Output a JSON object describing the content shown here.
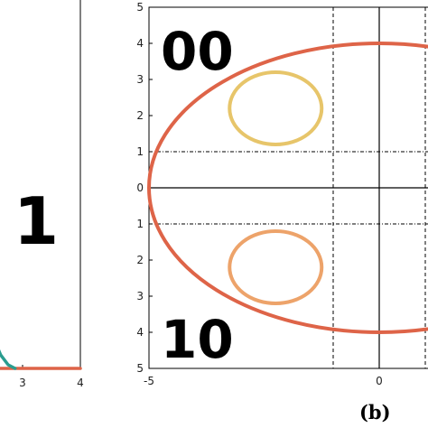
{
  "colors": {
    "ellipse": "#de6448",
    "top_circle": "#e7c56a",
    "bottom_circle": "#eda36a",
    "left_curve": "#2a9d8f",
    "axis": "#000000",
    "background": "#ffffff"
  },
  "chart_data": [
    {
      "type": "line",
      "panel": "left (partial)",
      "title": "",
      "xlabel": "",
      "ylabel": "",
      "x_ticks": [
        "3",
        "4"
      ],
      "xlim": [
        2.4,
        4
      ],
      "region_label": "1",
      "series": [
        {
          "color": "#de6448",
          "x": [
            2.4,
            4
          ],
          "y": [
            0,
            0
          ]
        },
        {
          "color": "#2a9d8f",
          "x": [
            2.45,
            2.52,
            2.62,
            2.75,
            2.87
          ],
          "y": [
            0.09,
            0.06,
            0.03,
            0.008,
            0.0
          ]
        }
      ]
    },
    {
      "type": "line",
      "panel_label": "(b)",
      "title": "",
      "xlabel": "",
      "ylabel": "",
      "xlim": [
        -5,
        1
      ],
      "ylim": [
        -5,
        5
      ],
      "x_ticks": [
        "-5",
        "0"
      ],
      "y_ticks": [
        "5",
        "4",
        "3",
        "2",
        "1",
        "0",
        "1",
        "2",
        "3",
        "4",
        "5"
      ],
      "region_labels": {
        "top": "00",
        "bottom": "10"
      },
      "axis_lines": {
        "x": 0,
        "y": 0
      },
      "dashed_vertical_x": [
        -1,
        1
      ],
      "dashdot_horizontal_y": [
        1,
        -1
      ],
      "series": [
        {
          "type": "ellipse",
          "color": "#de6448",
          "center": [
            0,
            0
          ],
          "rx": 5,
          "ry": 4
        },
        {
          "type": "ellipse",
          "color": "#e7c56a",
          "center": [
            -2.25,
            2.2
          ],
          "rx": 1.0,
          "ry": 1.0
        },
        {
          "type": "ellipse",
          "color": "#eda36a",
          "center": [
            -2.25,
            -2.2
          ],
          "rx": 1.0,
          "ry": 1.0
        }
      ]
    }
  ]
}
